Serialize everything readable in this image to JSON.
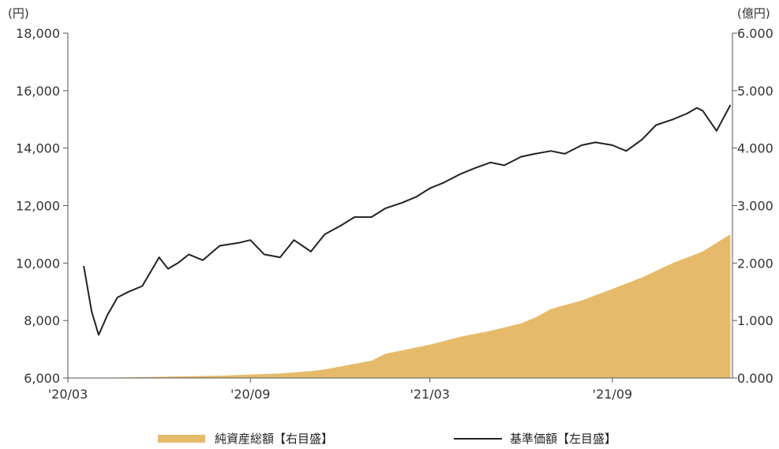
{
  "chart_data": {
    "type": "line",
    "title": "",
    "x_ticks": [
      "'20/03",
      "'20/09",
      "'21/03",
      "'21/09"
    ],
    "left_axis": {
      "unit": "(円)",
      "min": 6000,
      "max": 18000,
      "ticks": [
        "6,000",
        "8,000",
        "10,000",
        "12,000",
        "14,000",
        "16,000",
        "18,000"
      ]
    },
    "right_axis": {
      "unit": "(億円)",
      "min": 0,
      "max": 6,
      "ticks": [
        "0.000",
        "1.000",
        "2.000",
        "3.000",
        "4.000",
        "5.000",
        "6.000"
      ]
    },
    "legend": [
      "純資産総額【右目盛】",
      "基準価額【左目盛】"
    ],
    "grid": false,
    "legend_position": "bottom",
    "series": [
      {
        "name": "純資産総額【右目盛】",
        "type": "area",
        "axis": "right",
        "color": "#e5bb6b",
        "x": [
          "2020-03-17",
          "2020-04-01",
          "2020-05-01",
          "2020-06-01",
          "2020-07-01",
          "2020-08-01",
          "2020-09-01",
          "2020-10-01",
          "2020-11-01",
          "2020-11-15",
          "2020-12-01",
          "2021-01-01",
          "2021-01-15",
          "2021-02-01",
          "2021-03-01",
          "2021-04-01",
          "2021-05-01",
          "2021-06-01",
          "2021-06-15",
          "2021-07-01",
          "2021-08-01",
          "2021-09-01",
          "2021-10-01",
          "2021-11-01",
          "2021-12-01",
          "2021-12-15",
          "2021-12-29"
        ],
        "values": [
          0.0,
          0.005,
          0.01,
          0.02,
          0.03,
          0.04,
          0.06,
          0.08,
          0.12,
          0.15,
          0.2,
          0.3,
          0.42,
          0.48,
          0.58,
          0.72,
          0.82,
          0.95,
          1.05,
          1.2,
          1.35,
          1.55,
          1.75,
          2.0,
          2.2,
          2.35,
          2.5
        ]
      },
      {
        "name": "基準価額【左目盛】",
        "type": "line",
        "axis": "left",
        "color": "#222222",
        "x": [
          "2020-03-17",
          "2020-03-25",
          "2020-04-01",
          "2020-04-10",
          "2020-04-20",
          "2020-05-01",
          "2020-05-15",
          "2020-06-01",
          "2020-06-10",
          "2020-06-20",
          "2020-07-01",
          "2020-07-15",
          "2020-08-01",
          "2020-08-20",
          "2020-09-01",
          "2020-09-15",
          "2020-10-01",
          "2020-10-15",
          "2020-11-01",
          "2020-11-15",
          "2020-12-01",
          "2020-12-15",
          "2021-01-01",
          "2021-01-15",
          "2021-02-01",
          "2021-02-15",
          "2021-03-01",
          "2021-03-15",
          "2021-04-01",
          "2021-04-15",
          "2021-05-01",
          "2021-05-15",
          "2021-06-01",
          "2021-06-15",
          "2021-07-01",
          "2021-07-15",
          "2021-08-01",
          "2021-08-15",
          "2021-09-01",
          "2021-09-15",
          "2021-10-01",
          "2021-10-15",
          "2021-11-01",
          "2021-11-15",
          "2021-11-25",
          "2021-12-01",
          "2021-12-15",
          "2021-12-29"
        ],
        "values": [
          9900,
          8300,
          7500,
          8200,
          8800,
          9000,
          9200,
          10200,
          9800,
          10000,
          10300,
          10100,
          10600,
          10700,
          10800,
          10300,
          10200,
          10800,
          10400,
          11000,
          11300,
          11600,
          11600,
          11900,
          12100,
          12300,
          12600,
          12800,
          13100,
          13300,
          13500,
          13400,
          13700,
          13800,
          13900,
          13800,
          14100,
          14200,
          14100,
          13900,
          14300,
          14800,
          15000,
          15200,
          15400,
          15300,
          14600,
          15500
        ]
      }
    ]
  }
}
